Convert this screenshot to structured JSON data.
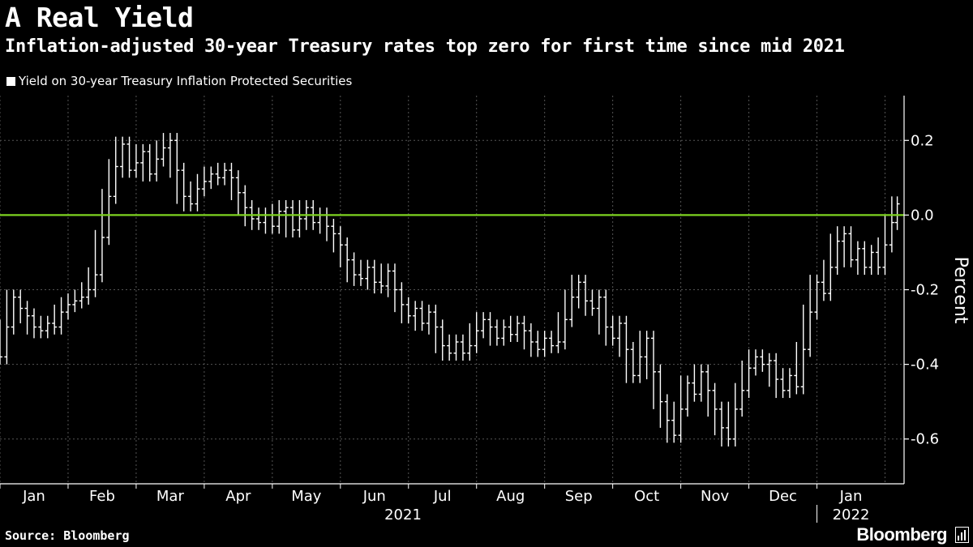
{
  "header": {
    "title": "A Real Yield",
    "subtitle": "Inflation-adjusted 30-year Treasury rates top zero for first time since mid 2021"
  },
  "legend": {
    "label": "Yield on 30-year Treasury Inflation Protected Securities"
  },
  "footer": {
    "source": "Source: Bloomberg",
    "brand": "Bloomberg"
  },
  "colors": {
    "background": "#000000",
    "series": "#ffffff",
    "zero_line": "#7ed321",
    "grid": "#555555"
  },
  "chart_data": {
    "type": "line",
    "style": "ohlc-bars",
    "title": "A Real Yield",
    "subtitle": "Inflation-adjusted 30-year Treasury rates top zero for first time since mid 2021",
    "ylabel": "Percent",
    "xlabel": "",
    "ylim": [
      -0.72,
      0.32
    ],
    "yticks": [
      0.2,
      0.0,
      -0.2,
      -0.4,
      -0.6
    ],
    "ytick_labels": [
      "0.2",
      "0.0",
      "-0.2",
      "-0.4",
      "-0.6"
    ],
    "reference_line": {
      "value": 0.0,
      "color": "#7ed321"
    },
    "grid": "vertical dashed at month boundaries",
    "x_categories": [
      "Jan",
      "Feb",
      "Mar",
      "Apr",
      "May",
      "Jun",
      "Jul",
      "Aug",
      "Sep",
      "Oct",
      "Nov",
      "Dec",
      "Jan"
    ],
    "year_labels": [
      {
        "label": "2021",
        "under_month_index": 6
      },
      {
        "label": "2022",
        "under_month_index": 12
      }
    ],
    "series": [
      {
        "name": "Yield on 30-year Treasury Inflation Protected Securities",
        "x_unit": "month (1.0 = start of Jan 2021)",
        "points": [
          [
            1.0,
            -0.38
          ],
          [
            1.1,
            -0.3
          ],
          [
            1.2,
            -0.22
          ],
          [
            1.3,
            -0.25
          ],
          [
            1.4,
            -0.27
          ],
          [
            1.5,
            -0.3
          ],
          [
            1.6,
            -0.31
          ],
          [
            1.7,
            -0.29
          ],
          [
            1.8,
            -0.3
          ],
          [
            1.9,
            -0.26
          ],
          [
            2.0,
            -0.24
          ],
          [
            2.1,
            -0.23
          ],
          [
            2.2,
            -0.22
          ],
          [
            2.3,
            -0.2
          ],
          [
            2.4,
            -0.16
          ],
          [
            2.5,
            -0.06
          ],
          [
            2.6,
            0.05
          ],
          [
            2.7,
            0.13
          ],
          [
            2.8,
            0.19
          ],
          [
            2.9,
            0.12
          ],
          [
            3.0,
            0.14
          ],
          [
            3.1,
            0.17
          ],
          [
            3.2,
            0.11
          ],
          [
            3.3,
            0.15
          ],
          [
            3.4,
            0.18
          ],
          [
            3.5,
            0.2
          ],
          [
            3.6,
            0.12
          ],
          [
            3.7,
            0.05
          ],
          [
            3.8,
            0.03
          ],
          [
            3.9,
            0.07
          ],
          [
            4.0,
            0.09
          ],
          [
            4.1,
            0.11
          ],
          [
            4.2,
            0.1
          ],
          [
            4.3,
            0.12
          ],
          [
            4.4,
            0.1
          ],
          [
            4.5,
            0.06
          ],
          [
            4.6,
            0.02
          ],
          [
            4.7,
            -0.01
          ],
          [
            4.8,
            -0.02
          ],
          [
            4.9,
            0.0
          ],
          [
            5.0,
            -0.03
          ],
          [
            5.1,
            0.01
          ],
          [
            5.2,
            0.02
          ],
          [
            5.3,
            -0.04
          ],
          [
            5.4,
            -0.01
          ],
          [
            5.5,
            0.02
          ],
          [
            5.6,
            -0.02
          ],
          [
            5.7,
            0.0
          ],
          [
            5.8,
            -0.03
          ],
          [
            5.9,
            -0.05
          ],
          [
            6.0,
            -0.08
          ],
          [
            6.1,
            -0.12
          ],
          [
            6.2,
            -0.16
          ],
          [
            6.3,
            -0.17
          ],
          [
            6.4,
            -0.14
          ],
          [
            6.5,
            -0.18
          ],
          [
            6.6,
            -0.19
          ],
          [
            6.7,
            -0.15
          ],
          [
            6.8,
            -0.2
          ],
          [
            6.9,
            -0.24
          ],
          [
            7.0,
            -0.27
          ],
          [
            7.1,
            -0.25
          ],
          [
            7.2,
            -0.29
          ],
          [
            7.3,
            -0.26
          ],
          [
            7.4,
            -0.3
          ],
          [
            7.5,
            -0.35
          ],
          [
            7.6,
            -0.37
          ],
          [
            7.7,
            -0.34
          ],
          [
            7.8,
            -0.37
          ],
          [
            7.9,
            -0.35
          ],
          [
            8.0,
            -0.31
          ],
          [
            8.1,
            -0.28
          ],
          [
            8.2,
            -0.3
          ],
          [
            8.3,
            -0.33
          ],
          [
            8.4,
            -0.3
          ],
          [
            8.5,
            -0.32
          ],
          [
            8.6,
            -0.29
          ],
          [
            8.7,
            -0.31
          ],
          [
            8.8,
            -0.34
          ],
          [
            8.9,
            -0.36
          ],
          [
            9.0,
            -0.33
          ],
          [
            9.1,
            -0.35
          ],
          [
            9.2,
            -0.34
          ],
          [
            9.3,
            -0.28
          ],
          [
            9.4,
            -0.22
          ],
          [
            9.5,
            -0.18
          ],
          [
            9.6,
            -0.23
          ],
          [
            9.7,
            -0.25
          ],
          [
            9.8,
            -0.22
          ],
          [
            9.9,
            -0.3
          ],
          [
            10.0,
            -0.33
          ],
          [
            10.1,
            -0.29
          ],
          [
            10.2,
            -0.36
          ],
          [
            10.3,
            -0.43
          ],
          [
            10.4,
            -0.38
          ],
          [
            10.5,
            -0.33
          ],
          [
            10.6,
            -0.42
          ],
          [
            10.7,
            -0.5
          ],
          [
            10.8,
            -0.55
          ],
          [
            10.9,
            -0.59
          ],
          [
            11.0,
            -0.52
          ],
          [
            11.1,
            -0.45
          ],
          [
            11.2,
            -0.48
          ],
          [
            11.3,
            -0.42
          ],
          [
            11.4,
            -0.47
          ],
          [
            11.5,
            -0.52
          ],
          [
            11.6,
            -0.57
          ],
          [
            11.7,
            -0.6
          ],
          [
            11.8,
            -0.52
          ],
          [
            11.9,
            -0.47
          ],
          [
            12.0,
            -0.41
          ],
          [
            12.1,
            -0.38
          ],
          [
            12.2,
            -0.4
          ],
          [
            12.3,
            -0.39
          ],
          [
            12.4,
            -0.44
          ],
          [
            12.5,
            -0.47
          ],
          [
            12.6,
            -0.43
          ],
          [
            12.7,
            -0.46
          ],
          [
            12.8,
            -0.36
          ],
          [
            12.9,
            -0.26
          ],
          [
            13.0,
            -0.18
          ],
          [
            13.1,
            -0.21
          ],
          [
            13.2,
            -0.14
          ],
          [
            13.3,
            -0.07
          ],
          [
            13.4,
            -0.05
          ],
          [
            13.5,
            -0.12
          ],
          [
            13.6,
            -0.09
          ],
          [
            13.7,
            -0.14
          ],
          [
            13.8,
            -0.1
          ],
          [
            13.9,
            -0.14
          ],
          [
            14.0,
            -0.08
          ],
          [
            14.1,
            -0.02
          ],
          [
            14.18,
            0.03
          ]
        ]
      }
    ]
  }
}
